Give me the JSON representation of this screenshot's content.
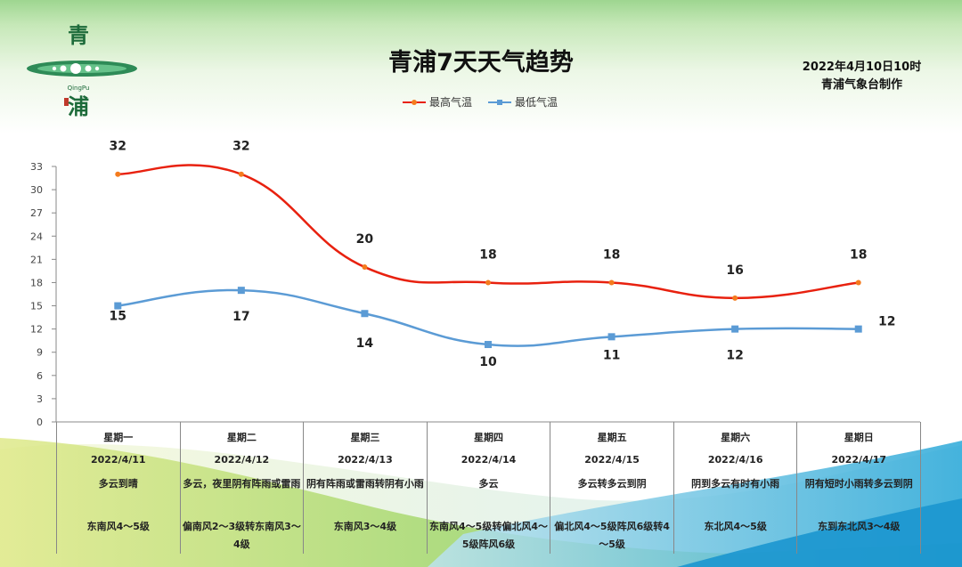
{
  "header": {
    "title": "青浦7天天气趋势",
    "issue_time": "2022年4月10日10时",
    "issuer": "青浦气象台制作",
    "logo_text": [
      "青",
      "QingPu",
      "浦"
    ]
  },
  "legend": {
    "high": "最高气温",
    "low": "最低气温"
  },
  "colors": {
    "high": "#e8210f",
    "low": "#5b9bd5",
    "high_marker": "#f47b1e"
  },
  "chart_data": {
    "type": "line",
    "categories": [
      "星期一",
      "星期二",
      "星期三",
      "星期四",
      "星期五",
      "星期六",
      "星期日"
    ],
    "series": [
      {
        "name": "最高气温",
        "values": [
          32,
          32,
          20,
          18,
          18,
          16,
          18
        ]
      },
      {
        "name": "最低气温",
        "values": [
          15,
          17,
          14,
          10,
          11,
          12,
          12
        ]
      }
    ],
    "yticks": [
      0,
      3,
      6,
      9,
      12,
      15,
      18,
      21,
      24,
      27,
      30,
      33
    ],
    "ylim": [
      0,
      33
    ],
    "title": "青浦7天天气趋势",
    "xlabel": "",
    "ylabel": "",
    "grid": false,
    "legend_position": "top-center"
  },
  "forecast": [
    {
      "weekday": "星期一",
      "date": "2022/4/11",
      "weather": "多云到晴",
      "wind": "东南风4～5级"
    },
    {
      "weekday": "星期二",
      "date": "2022/4/12",
      "weather": "多云，夜里阴有阵雨或雷雨",
      "wind": "偏南风2～3级转东南风3～4级"
    },
    {
      "weekday": "星期三",
      "date": "2022/4/13",
      "weather": "阴有阵雨或雷雨转阴有小雨",
      "wind": "东南风3～4级"
    },
    {
      "weekday": "星期四",
      "date": "2022/4/14",
      "weather": "多云",
      "wind": "东南风4～5级转偏北风4～5级阵风6级"
    },
    {
      "weekday": "星期五",
      "date": "2022/4/15",
      "weather": "多云转多云到阴",
      "wind": "偏北风4～5级阵风6级转4～5级"
    },
    {
      "weekday": "星期六",
      "date": "2022/4/16",
      "weather": "阴到多云有时有小雨",
      "wind": "东北风4～5级"
    },
    {
      "weekday": "星期日",
      "date": "2022/4/17",
      "weather": "阴有短时小雨转多云到阴",
      "wind": "东到东北风3～4级"
    }
  ]
}
